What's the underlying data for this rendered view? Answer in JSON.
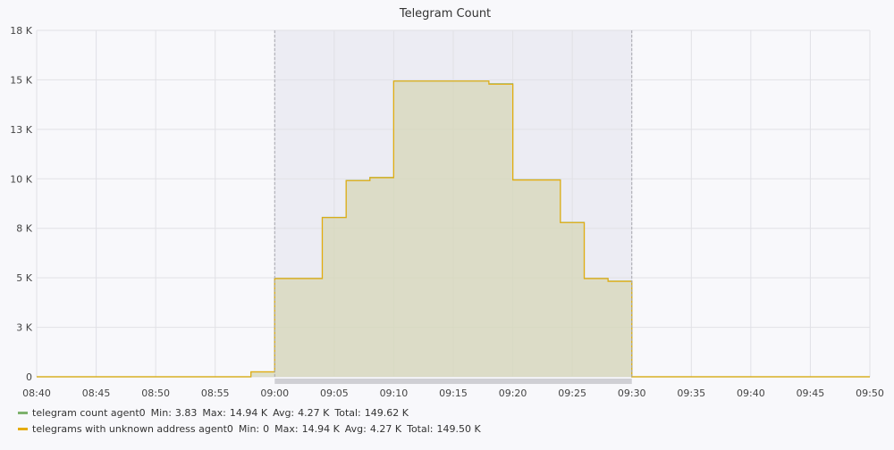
{
  "chart_data": {
    "type": "area",
    "title": "Telegram Count",
    "xlabel": "",
    "ylabel": "",
    "x_ticks": [
      "08:40",
      "08:45",
      "08:50",
      "08:55",
      "09:00",
      "09:05",
      "09:10",
      "09:15",
      "09:20",
      "09:25",
      "09:30",
      "09:35",
      "09:40",
      "09:45",
      "09:50"
    ],
    "y_ticks": [
      "0",
      "3 K",
      "5 K",
      "8 K",
      "10 K",
      "13 K",
      "15 K",
      "18 K"
    ],
    "ylim": [
      0,
      17500
    ],
    "xlim": [
      "08:40",
      "09:50"
    ],
    "highlight_range": [
      "09:00",
      "09:30"
    ],
    "grid": true,
    "legend_position": "bottom-left",
    "series": [
      {
        "name": "telegram count agent0",
        "color": "#7eb26d",
        "step": true,
        "x": [
          "08:40",
          "08:58",
          "09:00",
          "09:04",
          "09:06",
          "09:08",
          "09:10",
          "09:18",
          "09:20",
          "09:24",
          "09:26",
          "09:28",
          "09:30",
          "09:50"
        ],
        "values": [
          0,
          250,
          4970,
          8050,
          9920,
          10070,
          14940,
          14800,
          9950,
          7800,
          4970,
          4830,
          0,
          0
        ],
        "stats": {
          "Min": "3.83",
          "Max": "14.94 K",
          "Avg": "4.27 K",
          "Total": "149.62 K"
        }
      },
      {
        "name": "telegrams with unknown address agent0",
        "color": "#e5ac0e",
        "step": true,
        "x": [
          "08:40",
          "08:58",
          "09:00",
          "09:04",
          "09:06",
          "09:08",
          "09:10",
          "09:18",
          "09:20",
          "09:24",
          "09:26",
          "09:28",
          "09:30",
          "09:50"
        ],
        "values": [
          0,
          250,
          4960,
          8040,
          9910,
          10060,
          14940,
          14780,
          9940,
          7790,
          4960,
          4820,
          0,
          0
        ],
        "stats": {
          "Min": "0",
          "Max": "14.94 K",
          "Avg": "4.27 K",
          "Total": "149.50 K"
        }
      }
    ]
  }
}
